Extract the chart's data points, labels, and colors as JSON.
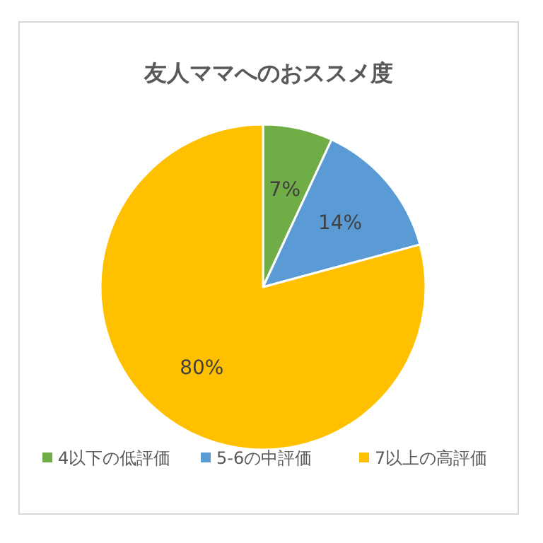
{
  "chart_data": {
    "type": "pie",
    "title": "友人ママへのおススメ度",
    "categories": [
      "4以下の低評価",
      "5-6の中評価",
      "7以上の高評価"
    ],
    "values": [
      7,
      14,
      80
    ],
    "colors": [
      "#70ad47",
      "#5b9bd5",
      "#ffc000"
    ],
    "value_labels": [
      "7%",
      "14%",
      "80%"
    ],
    "legend": "bottom"
  }
}
